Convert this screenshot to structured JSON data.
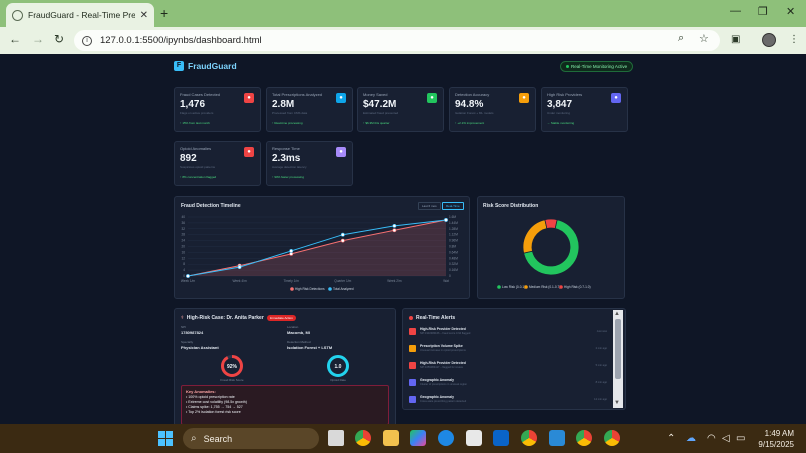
{
  "browser": {
    "tab_title": "FraudGuard - Real-Time Prescri",
    "url": "127.0.0.1:5500/ipynbs/dashboard.html"
  },
  "header": {
    "brand": "FraudGuard",
    "status": "Real-Time Monitoring Active"
  },
  "cards": [
    {
      "title": "Fraud Cases Detected",
      "value": "1,476",
      "sub": "Flags on active providers",
      "change": "↑ 15% from last month",
      "color": "#ef4444",
      "icon": "warning-icon"
    },
    {
      "title": "Total Prescriptions Analyzed",
      "value": "2.8M",
      "sub": "Processed from CMS data",
      "change": "↑ Real-time processing",
      "color": "#0ea5e9",
      "icon": "chart-icon"
    },
    {
      "title": "Money Saved",
      "value": "$47.2M",
      "sub": "Estimated fraud prevented",
      "change": "↑ $6.3M this quarter",
      "color": "#22c55e",
      "icon": "money-icon"
    },
    {
      "title": "Detection Accuracy",
      "value": "94.8%",
      "sub": "Isolation Forest + ML models",
      "change": "↑ +2.1% improvement",
      "color": "#f59e0b",
      "icon": "target-icon"
    },
    {
      "title": "High Risk Providers",
      "value": "3,847",
      "sub": "Under monitoring",
      "change": "→ Stable monitoring",
      "color": "#6366f1",
      "icon": "user-alert-icon"
    },
    {
      "title": "Opioid Anomalies",
      "value": "892",
      "sub": "Suspicious opioid patterns",
      "change": "↑ 8% concentration flagged",
      "color": "#ef4444",
      "icon": "pill-icon"
    },
    {
      "title": "Response Time",
      "value": "2.3ms",
      "sub": "Average detection latency",
      "change": "↑ 90% faster processing",
      "color": "#a78bfa",
      "icon": "bolt-icon"
    }
  ],
  "timeline": {
    "title": "Fraud Detection Timeline",
    "btn1": "Last 6 mos",
    "btn2": "Real-Time"
  },
  "chart_data": [
    {
      "type": "line",
      "title": "Fraud Detection Timeline",
      "x": [
        "Week 1/m",
        "Week 4/m",
        "Timely 1/m",
        "Quarter 1/m",
        "Week 2/m",
        "Wat"
      ],
      "ylim": [
        0,
        40
      ],
      "y2lim": [
        0,
        1.6
      ],
      "yticks": [
        0,
        4,
        8,
        12,
        16,
        20,
        24,
        28,
        32,
        36,
        40
      ],
      "y2ticks": [
        "0",
        "0.16M",
        "0.32M",
        "0.48M",
        "0.64M",
        "0.8M",
        "0.96M",
        "1.12M",
        "1.28M",
        "1.44M",
        "1.6M"
      ],
      "series": [
        {
          "name": "High Risk Detections",
          "color": "#f87171",
          "values": [
            0,
            7,
            15,
            24,
            31,
            38
          ]
        },
        {
          "name": "Total Analyzed",
          "color": "#38bdf8",
          "values": [
            0,
            6,
            17,
            28,
            34,
            38
          ]
        }
      ],
      "legend": "bottom"
    },
    {
      "type": "pie",
      "title": "Risk Score Distribution",
      "categories": [
        "Low Risk (0-0.1)",
        "Medium Risk (0.1-0.7)",
        "High Risk (0.7-1.0)"
      ],
      "values": [
        68,
        25,
        7
      ],
      "colors": [
        "#22c55e",
        "#f59e0b",
        "#ef4444"
      ],
      "legend": "bottom"
    }
  ],
  "case": {
    "title": "High-Risk Case: Dr. Anita Parker",
    "badge": "Immediate Action",
    "npi_label": "NPI",
    "npi": "1780987824",
    "location_label": "Location",
    "location": "Macomb, MI",
    "specialty_label": "Specialty",
    "specialty": "Physician Assistant",
    "method_label": "Detection Method",
    "method": "Isolation Forest + LSTM",
    "score1": "92%",
    "score1_label": "Fraud Risk Score",
    "score1_fraction": 0.92,
    "score2": "1.0",
    "score2_label": "Opioid Rate",
    "score2_fraction": 1.0,
    "anomalies_title": "Key Anomalies:",
    "anomalies": [
      "• 100% opioid prescription rate",
      "• Extreme cost volatility (98.5x growth)",
      "• Claims spike: 1,755 → 754 → 527",
      "• Top 2% isolation forest risk score"
    ]
  },
  "alerts": {
    "title": "Real-Time Alerts",
    "items": [
      {
        "title": "High-Risk Provider Detected",
        "desc": "NPI 1932480166 – fraud score 0.94 flagged",
        "time": "Just now",
        "color": "#ef4444"
      },
      {
        "title": "Prescription Volume Spike",
        "desc": "Unusual increase in opioid prescriptions",
        "time": "2 min ago",
        "color": "#f59e0b"
      },
      {
        "title": "High-Risk Provider Detected",
        "desc": "NPI 1659384417 – flagged for review",
        "time": "5 min ago",
        "color": "#ef4444"
      },
      {
        "title": "Geographic Anomaly",
        "desc": "Cluster of prescriptions in unusual region",
        "time": "8 min ago",
        "color": "#6366f1"
      },
      {
        "title": "Geographic Anomaly",
        "desc": "Cross-state prescribing pattern detected",
        "time": "12 min ago",
        "color": "#6366f1"
      }
    ]
  },
  "taskbar": {
    "search": "Search",
    "time": "1:49 AM",
    "date": "9/15/2025"
  }
}
